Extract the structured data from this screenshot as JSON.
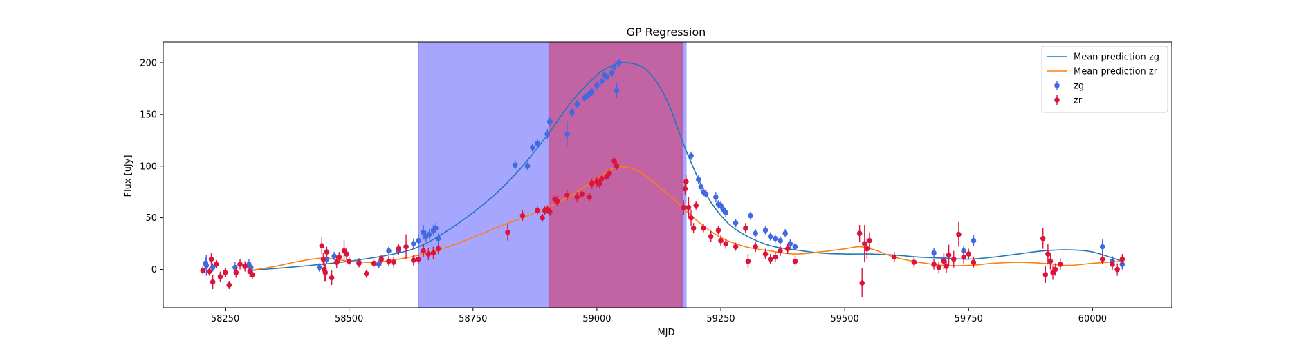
{
  "chart_data": {
    "type": "scatter",
    "title": "GP Regression",
    "xlabel": "MJD",
    "ylabel": "Flux [uJy]",
    "xlim": [
      58125,
      60160
    ],
    "ylim": [
      -37,
      220
    ],
    "xticks": [
      58250,
      58500,
      58750,
      59000,
      59250,
      59500,
      59750,
      60000
    ],
    "yticks": [
      0,
      50,
      100,
      150,
      200
    ],
    "grid": false,
    "legend_position": "top-right",
    "shaded_regions": [
      {
        "x0": 58640,
        "x1": 59180,
        "color": "#a6a6ff"
      },
      {
        "x0": 58903,
        "x1": 59172,
        "color": "#c264a4"
      }
    ],
    "colors": {
      "zg_points": "#4169e1",
      "zr_points": "#dc143c",
      "zg_line": "#1f77b4",
      "zr_line": "#ff7f0e"
    },
    "series": [
      {
        "name": "Mean prediction zg",
        "kind": "line",
        "x": [
          58300,
          58400,
          58500,
          58600,
          58650,
          58700,
          58750,
          58800,
          58850,
          58900,
          58950,
          59000,
          59030,
          59060,
          59100,
          59140,
          59180,
          59220,
          59260,
          59300,
          59350,
          59400,
          59450,
          59500,
          59550,
          59600,
          59650,
          59700,
          59750,
          59800,
          59850,
          59900,
          59950,
          60000,
          60060
        ],
        "y": [
          -1,
          3,
          8,
          16,
          24,
          38,
          55,
          75,
          100,
          130,
          163,
          188,
          197,
          200,
          193,
          165,
          115,
          73,
          47,
          33,
          23,
          19,
          16,
          15,
          15,
          14,
          12,
          11,
          10,
          12,
          15,
          18,
          19,
          17,
          8
        ]
      },
      {
        "name": "Mean prediction zr",
        "kind": "line",
        "x": [
          58300,
          58350,
          58400,
          58450,
          58500,
          58550,
          58600,
          58650,
          58700,
          58750,
          58800,
          58850,
          58900,
          58950,
          59000,
          59040,
          59080,
          59120,
          59160,
          59200,
          59250,
          59300,
          59350,
          59400,
          59450,
          59500,
          59530,
          59560,
          59600,
          59650,
          59700,
          59750,
          59800,
          59850,
          59900,
          59950,
          60000,
          60060
        ],
        "y": [
          -1,
          3,
          8,
          11,
          8,
          7,
          10,
          15,
          22,
          31,
          41,
          50,
          60,
          72,
          88,
          99,
          96,
          82,
          66,
          48,
          31,
          22,
          18,
          15,
          17,
          20,
          22,
          19,
          12,
          7,
          4,
          4,
          6,
          7,
          6,
          4,
          6,
          8
        ]
      },
      {
        "name": "zg",
        "kind": "errorbar",
        "x": [
          58210,
          58212,
          58225,
          58270,
          58290,
          58298,
          58302,
          58440,
          58455,
          58470,
          58480,
          58520,
          58560,
          58580,
          58600,
          58630,
          58640,
          58650,
          58655,
          58662,
          58670,
          58675,
          58680,
          58835,
          58860,
          58870,
          58880,
          58900,
          58905,
          58940,
          58950,
          58960,
          58975,
          58980,
          58985,
          58990,
          59000,
          59010,
          59015,
          59020,
          59030,
          59035,
          59040,
          59045,
          59190,
          59205,
          59210,
          59215,
          59220,
          59240,
          59245,
          59250,
          59255,
          59260,
          59280,
          59300,
          59310,
          59320,
          59340,
          59350,
          59360,
          59370,
          59380,
          59390,
          59400,
          59680,
          59700,
          59740,
          59760,
          60020,
          60040,
          60060
        ],
        "y": [
          6,
          4,
          2,
          2,
          3,
          5,
          2,
          2,
          10,
          13,
          12,
          7,
          5,
          18,
          18,
          25,
          28,
          36,
          32,
          34,
          38,
          40,
          30,
          101,
          100,
          118,
          122,
          131,
          143,
          131,
          152,
          160,
          166,
          168,
          170,
          172,
          178,
          182,
          188,
          186,
          190,
          196,
          173,
          200,
          110,
          87,
          80,
          75,
          73,
          70,
          63,
          62,
          58,
          55,
          45,
          40,
          52,
          35,
          38,
          32,
          30,
          28,
          35,
          25,
          22,
          16,
          10,
          18,
          28,
          22,
          8,
          5
        ],
        "err": [
          6,
          10,
          4,
          5,
          4,
          5,
          4,
          4,
          4,
          4,
          4,
          4,
          4,
          4,
          4,
          5,
          5,
          7,
          5,
          5,
          5,
          5,
          5,
          5,
          4,
          4,
          4,
          5,
          4,
          12,
          4,
          4,
          4,
          4,
          4,
          4,
          4,
          4,
          4,
          4,
          4,
          5,
          7,
          4,
          4,
          4,
          4,
          4,
          4,
          5,
          4,
          4,
          4,
          4,
          4,
          4,
          4,
          4,
          4,
          4,
          4,
          4,
          4,
          4,
          4,
          5,
          5,
          5,
          5,
          7,
          5,
          5
        ]
      },
      {
        "name": "zr",
        "kind": "errorbar",
        "x": [
          58205,
          58218,
          58222,
          58225,
          58232,
          58240,
          58250,
          58258,
          58272,
          58280,
          58290,
          58300,
          58305,
          58445,
          58448,
          58450,
          58452,
          58455,
          58465,
          58475,
          58480,
          58490,
          58495,
          58500,
          58520,
          58535,
          58550,
          58565,
          58580,
          58590,
          58600,
          58615,
          58630,
          58640,
          58650,
          58660,
          58670,
          58680,
          58820,
          58850,
          58880,
          58890,
          58895,
          58900,
          58905,
          58915,
          58920,
          58940,
          58960,
          58970,
          58985,
          58990,
          59000,
          59005,
          59010,
          59020,
          59025,
          59035,
          59040,
          59175,
          59178,
          59180,
          59185,
          59190,
          59195,
          59200,
          59215,
          59230,
          59245,
          59250,
          59260,
          59280,
          59300,
          59305,
          59320,
          59340,
          59350,
          59360,
          59370,
          59385,
          59400,
          59530,
          59535,
          59540,
          59545,
          59550,
          59600,
          59640,
          59680,
          59690,
          59700,
          59705,
          59710,
          59720,
          59730,
          59740,
          59750,
          59760,
          59900,
          59905,
          59910,
          59915,
          59920,
          59925,
          59935,
          60020,
          60040,
          60050,
          60060
        ],
        "y": [
          -1,
          -2,
          10,
          -12,
          5,
          -7,
          -3,
          -15,
          -3,
          5,
          3,
          -2,
          -5,
          23,
          10,
          0,
          -3,
          17,
          -8,
          7,
          12,
          18,
          15,
          8,
          6,
          -4,
          6,
          10,
          8,
          7,
          20,
          22,
          9,
          10,
          18,
          15,
          16,
          20,
          36,
          52,
          57,
          50,
          57,
          58,
          56,
          68,
          66,
          72,
          70,
          73,
          70,
          83,
          85,
          83,
          88,
          90,
          93,
          105,
          100,
          60,
          78,
          85,
          60,
          50,
          40,
          62,
          40,
          32,
          38,
          28,
          25,
          22,
          40,
          8,
          22,
          15,
          10,
          12,
          18,
          20,
          8,
          35,
          -13,
          25,
          20,
          28,
          12,
          7,
          5,
          2,
          8,
          3,
          14,
          10,
          34,
          12,
          15,
          7,
          30,
          -5,
          15,
          8,
          -3,
          0,
          5,
          10,
          5,
          0,
          10
        ],
        "err": [
          4,
          4,
          6,
          7,
          4,
          5,
          4,
          4,
          5,
          5,
          5,
          5,
          4,
          8,
          6,
          12,
          8,
          5,
          7,
          6,
          5,
          10,
          6,
          4,
          4,
          4,
          4,
          4,
          5,
          5,
          5,
          12,
          5,
          5,
          6,
          6,
          6,
          5,
          8,
          5,
          4,
          4,
          4,
          4,
          4,
          4,
          5,
          5,
          5,
          4,
          4,
          5,
          5,
          4,
          4,
          4,
          4,
          4,
          4,
          7,
          6,
          7,
          10,
          8,
          5,
          4,
          4,
          5,
          4,
          5,
          5,
          4,
          5,
          7,
          5,
          5,
          5,
          5,
          5,
          5,
          5,
          8,
          14,
          18,
          10,
          8,
          5,
          5,
          5,
          6,
          8,
          6,
          10,
          8,
          12,
          6,
          5,
          5,
          10,
          8,
          10,
          8,
          7,
          6,
          6,
          5,
          6,
          6,
          5
        ]
      }
    ]
  }
}
